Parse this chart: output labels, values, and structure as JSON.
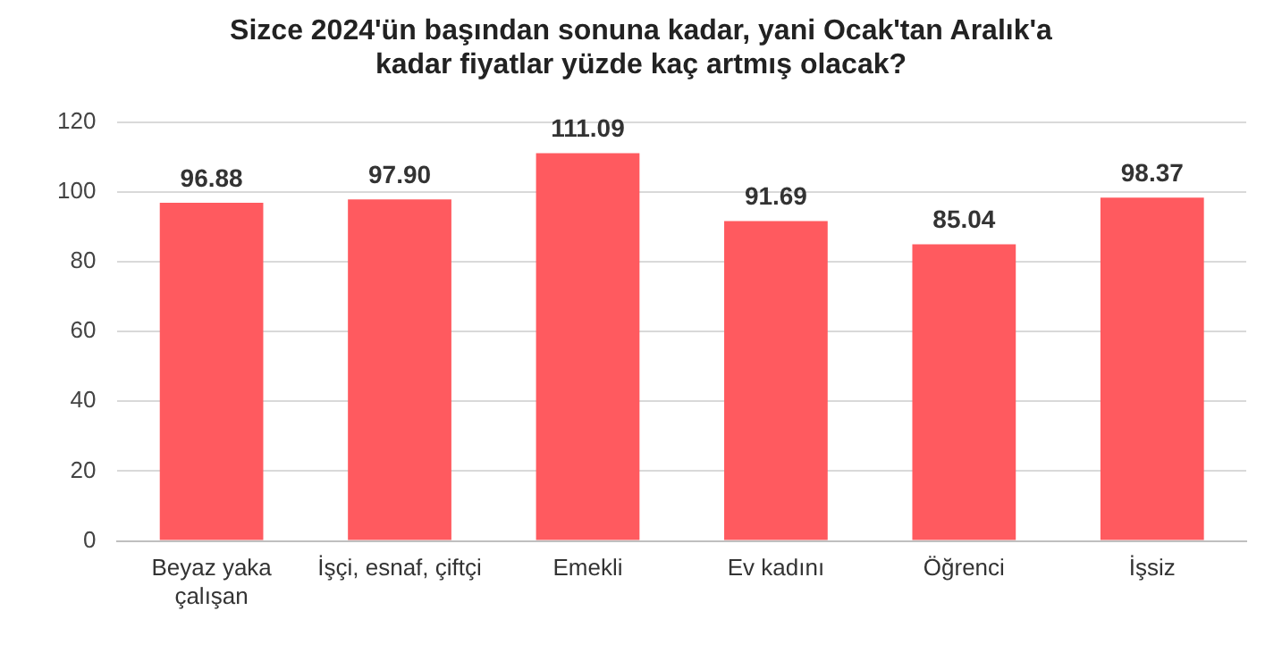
{
  "chart_data": {
    "type": "bar",
    "title": "Sizce 2024'ün başından sonuna kadar, yani Ocak'tan Aralık'a kadar fiyatlar yüzde kaç artmış olacak?",
    "categories": [
      "Beyaz yaka çalışan",
      "İşçi, esnaf, çiftçi",
      "Emekli",
      "Ev kadını",
      "Öğrenci",
      "İşsiz"
    ],
    "values": [
      96.88,
      97.9,
      111.09,
      91.69,
      85.04,
      98.37
    ],
    "color": "#ff5a5f",
    "ylim": [
      0,
      120
    ],
    "yticks": [
      0,
      20,
      40,
      60,
      80,
      100,
      120
    ],
    "grid": "y",
    "legend": false,
    "value_labels": [
      "96.88",
      "97.90",
      "111.09",
      "91.69",
      "85.04",
      "98.37"
    ]
  }
}
